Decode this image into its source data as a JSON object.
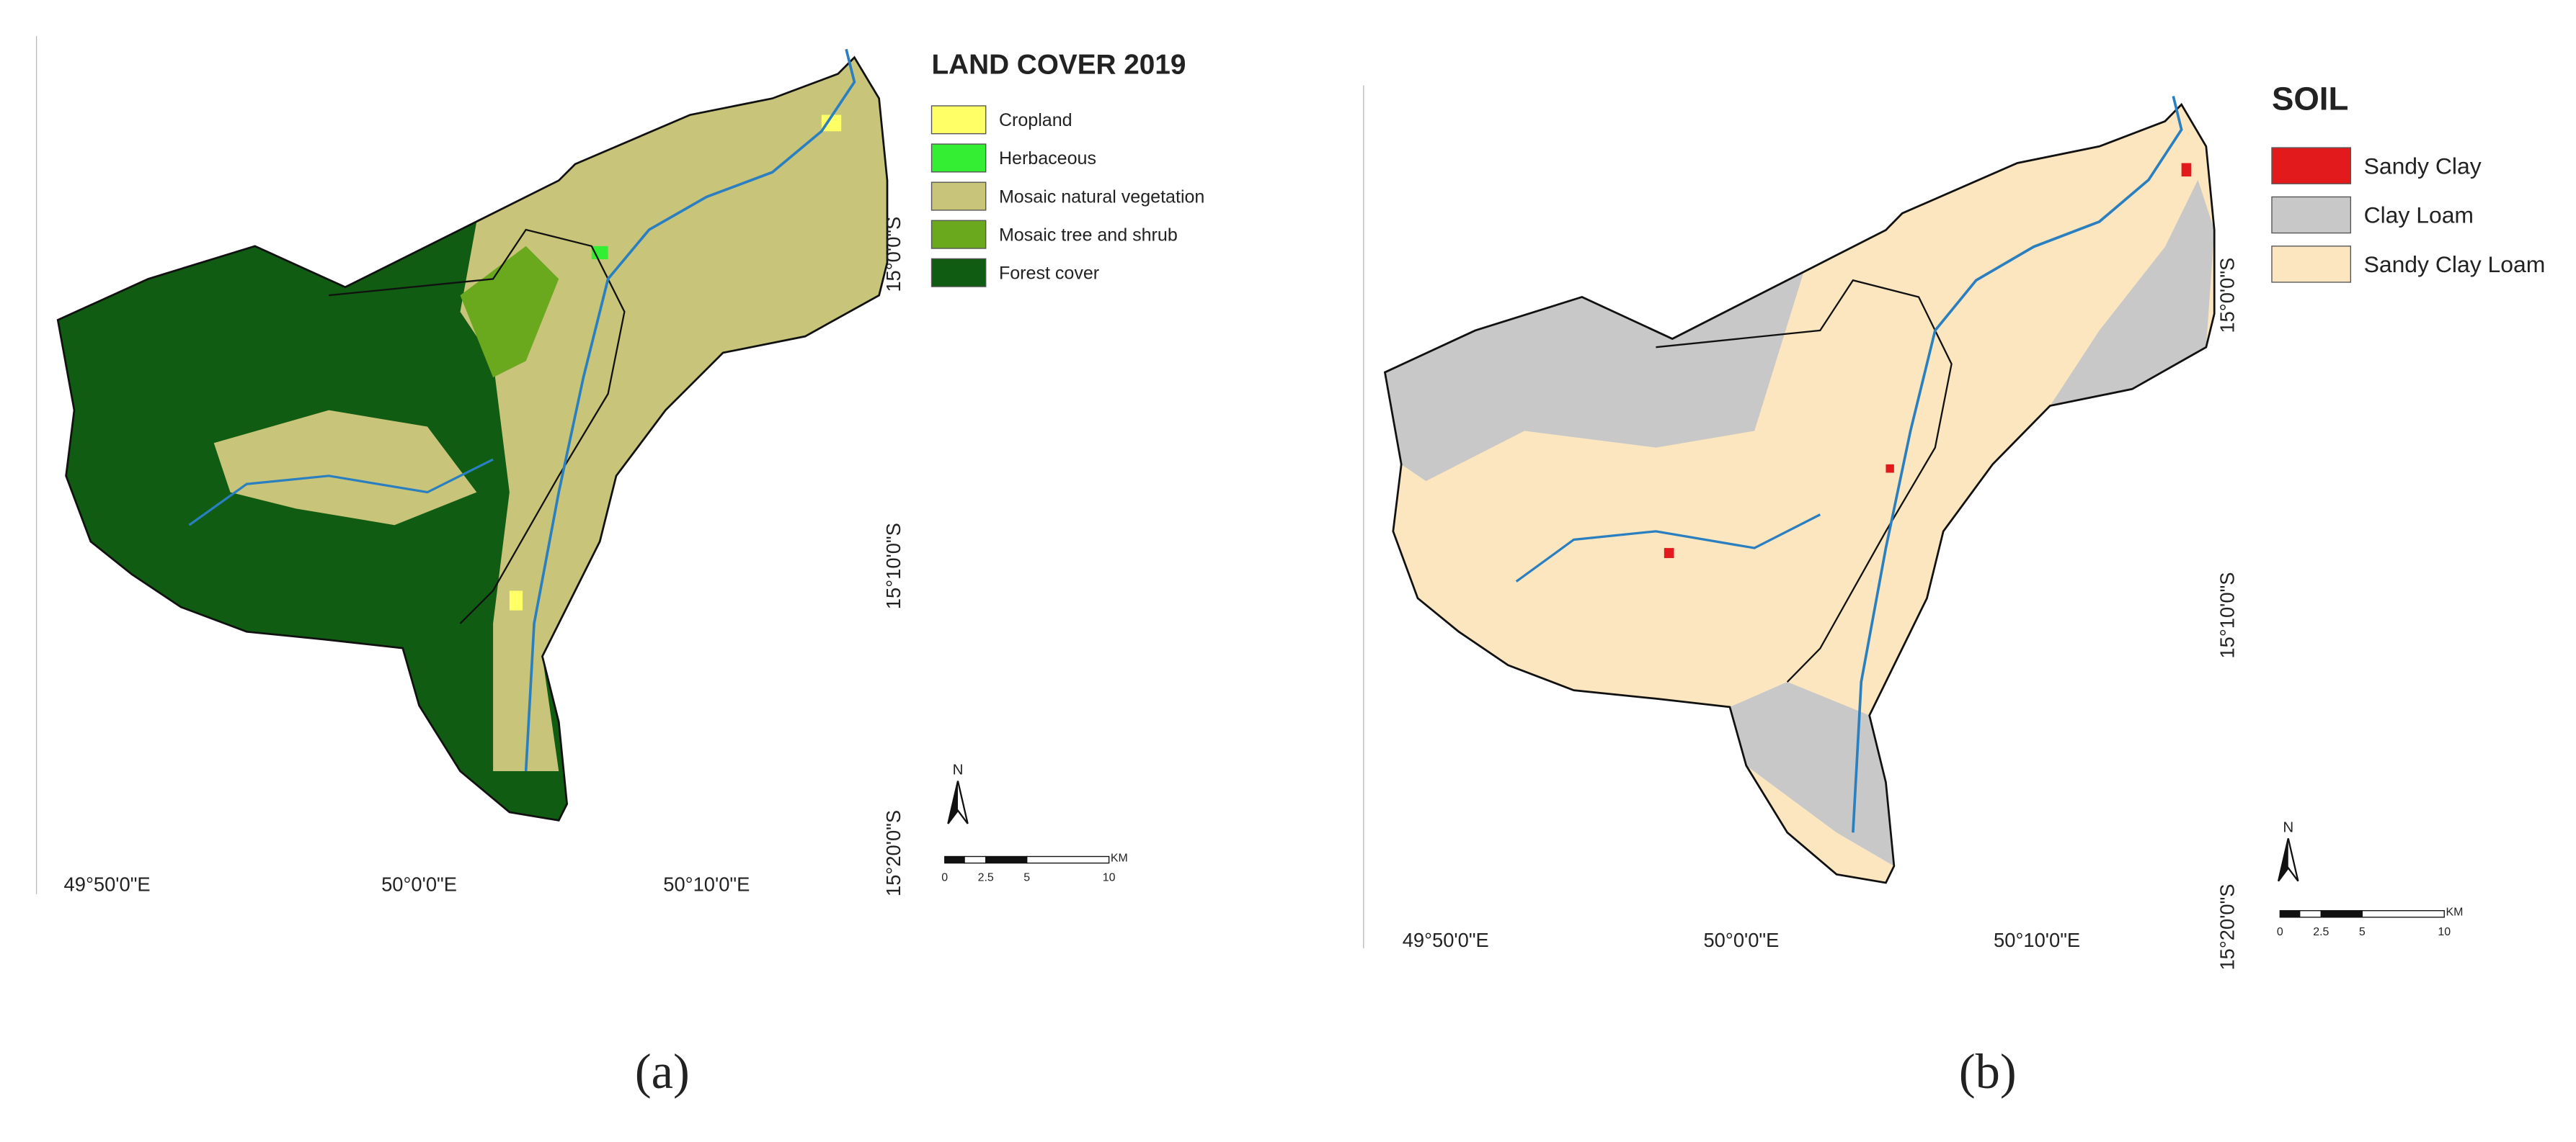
{
  "panels": [
    {
      "legend": {
        "title": "LAND COVER 2019",
        "items": [
          {
            "label": "Cropland",
            "color": "#ffff66"
          },
          {
            "label": "Herbaceous",
            "color": "#33ee33"
          },
          {
            "label": "Mosaic natural vegetation",
            "color": "#c8c47a"
          },
          {
            "label": "Mosaic tree and shrub",
            "color": "#6aa81e"
          },
          {
            "label": "Forest cover",
            "color": "#0f5c12"
          }
        ]
      },
      "longitudes": [
        "49°50'0\"E",
        "50°0'0\"E",
        "50°10'0\"E"
      ],
      "latitudes": [
        "15°0'0\"S",
        "15°10'0\"S",
        "15°20'0\"S"
      ],
      "north": "N",
      "scale": {
        "labels": [
          "0",
          "2.5",
          "5",
          "10"
        ],
        "unit": "KM"
      },
      "caption": "(a)"
    },
    {
      "legend": {
        "title": "SOIL",
        "items": [
          {
            "label": "Sandy Clay",
            "color": "#e31a1c"
          },
          {
            "label": "Clay Loam",
            "color": "#c8c8c8"
          },
          {
            "label": "Sandy Clay Loam",
            "color": "#fbe6c0"
          }
        ]
      },
      "longitudes": [
        "49°50'0\"E",
        "50°0'0\"E",
        "50°10'0\"E"
      ],
      "latitudes": [
        "15°0'0\"S",
        "15°10'0\"S",
        "15°20'0\"S"
      ],
      "north": "N",
      "scale": {
        "labels": [
          "0",
          "2.5",
          "5",
          "10"
        ],
        "unit": "KM"
      },
      "caption": "(b)"
    }
  ]
}
